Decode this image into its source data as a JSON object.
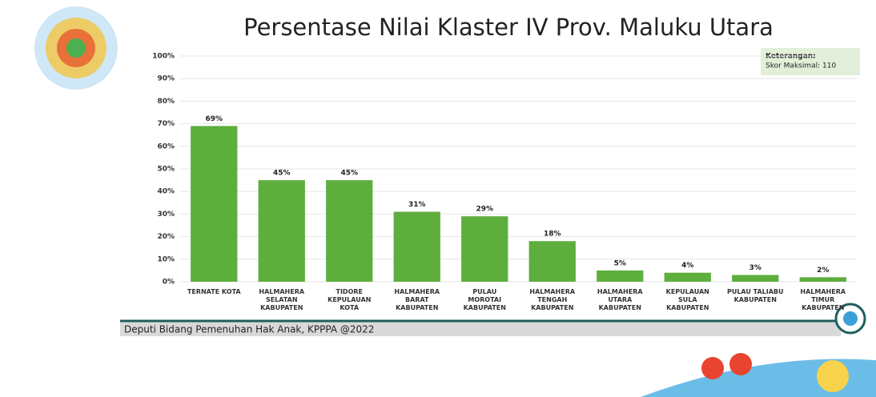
{
  "chart_data": {
    "type": "bar",
    "title": "Persentase Nilai Klaster IV Prov. Maluku Utara",
    "categories": [
      "TERNATE KOTA",
      "HALMAHERA\nSELATAN\nKABUPATEN",
      "TIDORE\nKEPULAUAN\nKOTA",
      "HALMAHERA\nBARAT\nKABUPATEN",
      "PULAU\nMOROTAI\nKABUPATEN",
      "HALMAHERA\nTENGAH\nKABUPATEN",
      "HALMAHERA\nUTARA\nKABUPATEN",
      "KEPULAUAN\nSULA\nKABUPATEN",
      "PULAU TALIABU\nKABUPATEN",
      "HALMAHERA\nTIMUR\nKABUPATEN"
    ],
    "values": [
      69,
      45,
      45,
      31,
      29,
      18,
      5,
      4,
      3,
      2
    ],
    "value_labels": [
      "69%",
      "45%",
      "45%",
      "31%",
      "29%",
      "18%",
      "5%",
      "4%",
      "3%",
      "2%"
    ],
    "color": "#5eae3e",
    "ylim": [
      0,
      100
    ],
    "yticks": [
      {
        "value": 0,
        "label": "0%"
      },
      {
        "value": 10,
        "label": "10%"
      },
      {
        "value": 20,
        "label": "20%"
      },
      {
        "value": 30,
        "label": "30%"
      },
      {
        "value": 40,
        "label": "40%"
      },
      {
        "value": 50,
        "label": "50%"
      },
      {
        "value": 60,
        "label": "60%"
      },
      {
        "value": 70,
        "label": "70%"
      },
      {
        "value": 80,
        "label": "80%"
      },
      {
        "value": 90,
        "label": "90%"
      },
      {
        "value": 100,
        "label": "100%"
      }
    ],
    "grid": true,
    "legend_box": {
      "title": "Keterangan:",
      "text": "Skor Maksimal: 110"
    }
  },
  "footer": "Deputi Bidang Pemenuhan Hak Anak, KPPPA @2022"
}
